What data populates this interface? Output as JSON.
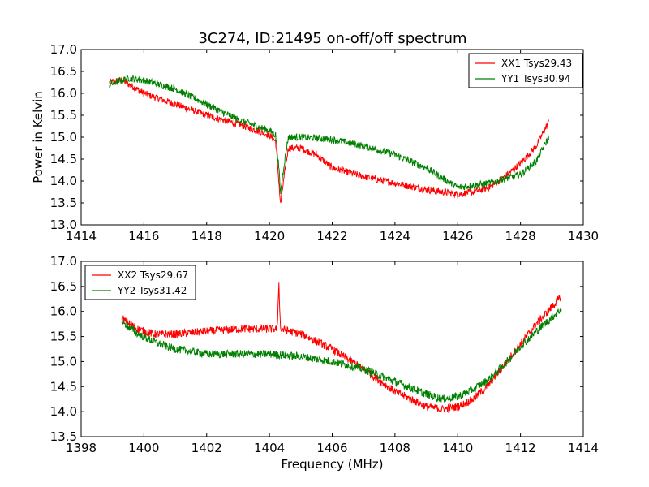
{
  "figure": {
    "title": "3C274, ID:21495 on-off/off spectrum"
  },
  "chart_data": [
    {
      "type": "line",
      "title": "3C274, ID:21495 on-off/off spectrum",
      "xlabel": "",
      "ylabel": "Power in Kelvin",
      "xlim": [
        1414,
        1430
      ],
      "ylim": [
        13.0,
        17.0
      ],
      "xticks": [
        "1414",
        "1416",
        "1418",
        "1420",
        "1422",
        "1424",
        "1426",
        "1428",
        "1430"
      ],
      "yticks": [
        "13.0",
        "13.5",
        "14.0",
        "14.5",
        "15.0",
        "15.5",
        "16.0",
        "16.5",
        "17.0"
      ],
      "legend_position": "top-right",
      "grid": false,
      "series": [
        {
          "name": "XX1 Tsys29.43",
          "color": "#ff0000",
          "x": [
            1414.9,
            1415.3,
            1416.0,
            1417.0,
            1418.0,
            1419.0,
            1420.0,
            1420.2,
            1420.3,
            1420.35,
            1420.45,
            1420.6,
            1421.0,
            1421.5,
            1422.0,
            1423.0,
            1424.0,
            1425.0,
            1426.0,
            1426.5,
            1427.0,
            1427.5,
            1428.0,
            1428.5,
            1428.9
          ],
          "y": [
            16.25,
            16.3,
            16.0,
            15.75,
            15.5,
            15.3,
            15.05,
            14.9,
            14.0,
            13.45,
            14.0,
            14.75,
            14.75,
            14.6,
            14.3,
            14.1,
            13.95,
            13.8,
            13.7,
            13.75,
            13.85,
            14.1,
            14.4,
            14.8,
            15.35
          ]
        },
        {
          "name": "YY1 Tsys30.94",
          "color": "#008000",
          "x": [
            1414.9,
            1415.5,
            1416.0,
            1417.0,
            1418.0,
            1419.0,
            1420.0,
            1420.2,
            1420.3,
            1420.35,
            1420.45,
            1420.6,
            1421.0,
            1422.0,
            1423.0,
            1424.0,
            1425.0,
            1426.0,
            1426.5,
            1427.0,
            1428.0,
            1428.5,
            1428.9
          ],
          "y": [
            16.2,
            16.35,
            16.3,
            16.1,
            15.75,
            15.4,
            15.15,
            15.05,
            14.3,
            13.7,
            14.3,
            15.0,
            15.0,
            14.95,
            14.8,
            14.6,
            14.3,
            13.85,
            13.9,
            13.95,
            14.15,
            14.45,
            15.0
          ]
        }
      ]
    },
    {
      "type": "line",
      "title": "",
      "xlabel": "Frequency (MHz)",
      "ylabel": "",
      "xlim": [
        1398,
        1414
      ],
      "ylim": [
        13.5,
        17.0
      ],
      "xticks": [
        "1398",
        "1400",
        "1402",
        "1404",
        "1406",
        "1408",
        "1410",
        "1412",
        "1414"
      ],
      "yticks": [
        "13.5",
        "14.0",
        "14.5",
        "15.0",
        "15.5",
        "16.0",
        "16.5",
        "17.0"
      ],
      "legend_position": "top-left",
      "grid": false,
      "series": [
        {
          "name": "XX2 Tsys29.67",
          "color": "#ff0000",
          "x": [
            1399.3,
            1399.8,
            1400.3,
            1401.0,
            1402.0,
            1403.0,
            1404.0,
            1404.25,
            1404.3,
            1404.35,
            1405.0,
            1406.0,
            1407.0,
            1408.0,
            1409.0,
            1409.5,
            1410.0,
            1410.5,
            1411.0,
            1411.5,
            1412.0,
            1412.5,
            1413.3
          ],
          "y": [
            15.85,
            15.65,
            15.55,
            15.55,
            15.6,
            15.65,
            15.65,
            15.65,
            16.6,
            15.65,
            15.55,
            15.25,
            14.85,
            14.4,
            14.1,
            14.05,
            14.1,
            14.25,
            14.55,
            14.95,
            15.35,
            15.75,
            16.3
          ]
        },
        {
          "name": "YY2 Tsys31.42",
          "color": "#008000",
          "x": [
            1399.3,
            1399.8,
            1400.5,
            1401.0,
            1402.0,
            1403.0,
            1404.0,
            1405.0,
            1406.0,
            1407.0,
            1408.0,
            1409.0,
            1409.5,
            1410.0,
            1410.5,
            1411.0,
            1411.5,
            1412.0,
            1412.5,
            1413.3
          ],
          "y": [
            15.8,
            15.55,
            15.35,
            15.25,
            15.15,
            15.15,
            15.15,
            15.1,
            15.0,
            14.85,
            14.6,
            14.35,
            14.25,
            14.3,
            14.45,
            14.65,
            14.95,
            15.3,
            15.6,
            16.05
          ]
        }
      ]
    }
  ]
}
